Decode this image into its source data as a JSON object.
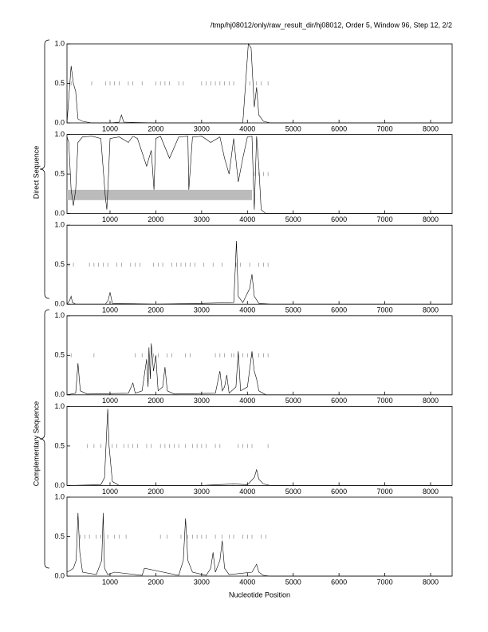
{
  "title": "/tmp/hj08012/only/raw_result_dir/hj08012, Order 5, Window 96, Step 12, 2/2",
  "groups": [
    "Direct Sequence",
    "Complementary Sequence"
  ],
  "chart_data": [
    {
      "type": "line",
      "xlim": [
        60,
        8470
      ],
      "ylim": [
        0,
        1
      ],
      "xticks": [
        1000,
        2000,
        3000,
        4000,
        5000,
        6000,
        7000,
        8000
      ],
      "yticks": [
        {
          "value": 0,
          "label": "0.0"
        },
        {
          "value": 0.5,
          "label": "0.5"
        },
        {
          "value": 1,
          "label": "1.0"
        }
      ],
      "x": [
        60,
        150,
        200,
        250,
        300,
        400,
        600,
        1000,
        1200,
        1250,
        1300,
        2000,
        3000,
        3900,
        3960,
        4020,
        4080,
        4150,
        4200,
        4250,
        4350,
        4500,
        8470
      ],
      "values": [
        0,
        0.72,
        0.5,
        0.4,
        0.05,
        0.02,
        0,
        0,
        0.01,
        0.1,
        0.01,
        0,
        0,
        0,
        0.5,
        1.0,
        0.95,
        0.2,
        0.45,
        0.1,
        0.02,
        0,
        0
      ],
      "markers": [
        150,
        600,
        900,
        1000,
        1100,
        1200,
        1400,
        1500,
        1700,
        2000,
        2100,
        2200,
        2300,
        2500,
        2600,
        3000,
        3100,
        3200,
        3300,
        3400,
        3500,
        3600,
        3700,
        4050,
        4200,
        4300,
        4450
      ]
    },
    {
      "type": "line",
      "xlim": [
        60,
        8470
      ],
      "ylim": [
        0,
        1
      ],
      "xticks": [
        1000,
        2000,
        3000,
        4000,
        5000,
        6000,
        7000,
        8000
      ],
      "yticks": [
        {
          "value": 0,
          "label": "0.0"
        },
        {
          "value": 0.5,
          "label": "0.5"
        },
        {
          "value": 1,
          "label": "1.0"
        }
      ],
      "x": [
        60,
        100,
        150,
        200,
        250,
        300,
        400,
        600,
        800,
        900,
        930,
        960,
        1000,
        1200,
        1400,
        1500,
        1600,
        1800,
        1900,
        1960,
        2000,
        2100,
        2300,
        2500,
        2700,
        2720,
        2800,
        3000,
        3200,
        3400,
        3500,
        3600,
        3700,
        3800,
        3900,
        4000,
        4100,
        4150,
        4200,
        4250,
        4300,
        4400,
        8470
      ],
      "values": [
        0.97,
        0.9,
        0.3,
        0.1,
        0.3,
        0.9,
        0.97,
        0.98,
        0.95,
        0.2,
        0.05,
        0.4,
        0.95,
        0.97,
        0.9,
        0.98,
        0.95,
        0.6,
        0.8,
        0.3,
        0.95,
        0.98,
        0.7,
        0.97,
        0.98,
        0.3,
        0.97,
        0.98,
        0.9,
        0.97,
        0.7,
        0.5,
        0.95,
        0.4,
        0.7,
        0.97,
        0.98,
        0.05,
        0.98,
        0.6,
        0.05,
        0,
        0
      ],
      "markers": [
        4150,
        4250,
        4350,
        4450
      ],
      "band": {
        "x": [
          60,
          4100
        ],
        "y": [
          0.17,
          0.3
        ]
      }
    },
    {
      "type": "line",
      "xlim": [
        60,
        8470
      ],
      "ylim": [
        0,
        1
      ],
      "xticks": [
        1000,
        2000,
        3000,
        4000,
        5000,
        6000,
        7000,
        8000
      ],
      "yticks": [
        {
          "value": 0,
          "label": "0.0"
        },
        {
          "value": 0.5,
          "label": "0.5"
        },
        {
          "value": 1,
          "label": "1.0"
        }
      ],
      "x": [
        60,
        120,
        150,
        180,
        250,
        900,
        960,
        1000,
        1050,
        2000,
        3000,
        3700,
        3740,
        3760,
        3800,
        3900,
        4050,
        4100,
        4150,
        4250,
        4500,
        8470
      ],
      "values": [
        0,
        0.05,
        0.1,
        0.02,
        0,
        0,
        0.05,
        0.15,
        0.01,
        0,
        0.01,
        0.02,
        0.5,
        0.8,
        0.1,
        0.02,
        0.2,
        0.38,
        0.1,
        0.01,
        0,
        0
      ],
      "markers": [
        100,
        200,
        550,
        650,
        750,
        850,
        950,
        1150,
        1250,
        1450,
        1550,
        1650,
        1950,
        2050,
        2150,
        2350,
        2450,
        2550,
        2650,
        2750,
        2850,
        3050,
        3250,
        3450,
        3750,
        3850,
        4050,
        4250,
        4350,
        4450
      ]
    },
    {
      "type": "line",
      "xlim": [
        60,
        8470
      ],
      "ylim": [
        0,
        1
      ],
      "xticks": [
        1000,
        2000,
        3000,
        4000,
        5000,
        6000,
        7000,
        8000
      ],
      "yticks": [
        {
          "value": 0,
          "label": "0.0"
        },
        {
          "value": 0.5,
          "label": "0.5"
        },
        {
          "value": 1,
          "label": "1.0"
        }
      ],
      "x": [
        60,
        250,
        300,
        350,
        500,
        1400,
        1500,
        1550,
        1700,
        1800,
        1830,
        1850,
        1880,
        1900,
        1950,
        2000,
        2050,
        2150,
        2200,
        2250,
        2400,
        3300,
        3400,
        3450,
        3500,
        3550,
        3600,
        3750,
        3800,
        3850,
        4000,
        4100,
        4150,
        4200,
        4250,
        4400,
        8470
      ],
      "values": [
        0,
        0.02,
        0.4,
        0.05,
        0.01,
        0.02,
        0.15,
        0.02,
        0.05,
        0.45,
        0.1,
        0.6,
        0.2,
        0.65,
        0.3,
        0.5,
        0.05,
        0.1,
        0.35,
        0.05,
        0.01,
        0.02,
        0.3,
        0.05,
        0.1,
        0.25,
        0.02,
        0.1,
        0.55,
        0.05,
        0.1,
        0.55,
        0.3,
        0.2,
        0.05,
        0,
        0
      ],
      "markers": [
        150,
        650,
        1550,
        1700,
        1850,
        1950,
        2050,
        2250,
        2350,
        2650,
        2750,
        3300,
        3400,
        3500,
        3650,
        3700,
        3800,
        3900,
        4000,
        4100,
        4250,
        4350,
        4450
      ]
    },
    {
      "type": "line",
      "xlim": [
        60,
        8470
      ],
      "ylim": [
        0,
        1
      ],
      "xticks": [
        1000,
        2000,
        3000,
        4000,
        5000,
        6000,
        7000,
        8000
      ],
      "yticks": [
        {
          "value": 0,
          "label": "0.0"
        },
        {
          "value": 0.5,
          "label": "0.5"
        },
        {
          "value": 1,
          "label": "1.0"
        }
      ],
      "x": [
        60,
        800,
        880,
        920,
        950,
        980,
        1050,
        1200,
        3000,
        3700,
        4000,
        4150,
        4200,
        4250,
        4350,
        4500,
        8470
      ],
      "values": [
        0,
        0.01,
        0.1,
        0.6,
        0.97,
        0.5,
        0.05,
        0,
        0,
        0.02,
        0.01,
        0.1,
        0.2,
        0.08,
        0.02,
        0,
        0
      ],
      "markers": [
        500,
        650,
        800,
        1050,
        1150,
        1300,
        1400,
        1500,
        1600,
        1800,
        1900,
        2100,
        2200,
        2300,
        2400,
        2500,
        2650,
        2800,
        2900,
        3000,
        3100,
        3300,
        3400,
        3800,
        3900,
        4000,
        4100,
        4450
      ]
    },
    {
      "type": "line",
      "xlim": [
        60,
        8470
      ],
      "ylim": [
        0,
        1
      ],
      "xticks": [
        1000,
        2000,
        3000,
        4000,
        5000,
        6000,
        7000,
        8000
      ],
      "yticks": [
        {
          "value": 0,
          "label": "0.0"
        },
        {
          "value": 0.5,
          "label": "0.5"
        },
        {
          "value": 1,
          "label": "1.0"
        }
      ],
      "x": [
        60,
        150,
        200,
        260,
        300,
        340,
        400,
        700,
        820,
        850,
        880,
        950,
        1100,
        1700,
        1750,
        2500,
        2600,
        2650,
        2700,
        2800,
        3100,
        3200,
        3250,
        3300,
        3400,
        3450,
        3500,
        3600,
        4100,
        4200,
        4250,
        4350,
        4500,
        8470
      ],
      "values": [
        0.05,
        0.08,
        0.1,
        0.2,
        0.8,
        0.3,
        0.05,
        0.02,
        0.2,
        0.8,
        0.1,
        0.02,
        0.05,
        0.01,
        0.1,
        0.01,
        0.2,
        0.73,
        0.2,
        0.05,
        0.01,
        0.1,
        0.3,
        0.05,
        0.2,
        0.45,
        0.1,
        0.02,
        0.05,
        0.15,
        0.05,
        0.01,
        0,
        0
      ],
      "markers": [
        350,
        450,
        550,
        700,
        800,
        950,
        1100,
        1200,
        1350,
        2100,
        2250,
        2550,
        2700,
        2800,
        2900,
        3000,
        3100,
        3300,
        3450,
        3600,
        3700,
        3900,
        4000,
        4100,
        4300,
        4400
      ],
      "xlabel": "Nucleotide Position"
    }
  ]
}
